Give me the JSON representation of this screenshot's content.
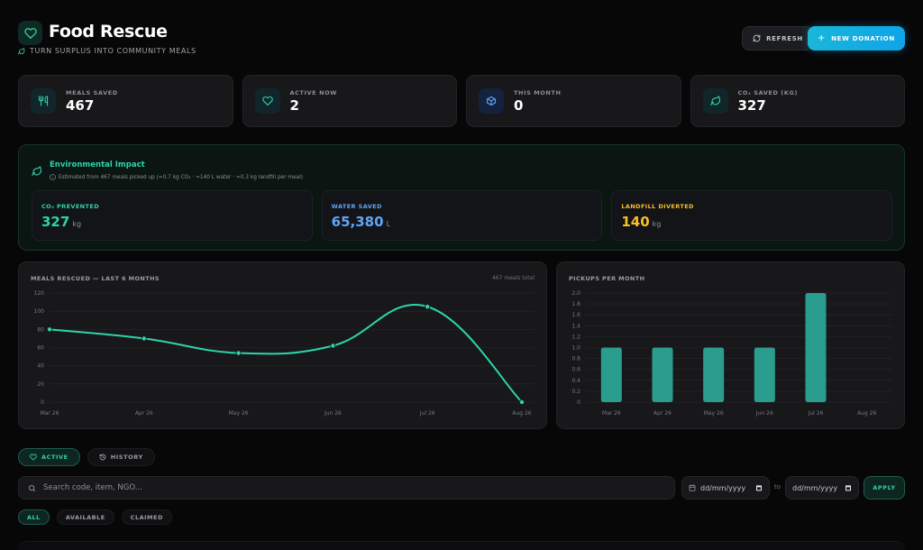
{
  "header": {
    "title": "Food Rescue",
    "subtitle": "TURN SURPLUS INTO COMMUNITY MEALS",
    "refresh_label": "REFRESH",
    "new_donation_label": "NEW DONATION"
  },
  "stats": [
    {
      "label": "MEALS SAVED",
      "value": "467",
      "icon": "utensils-icon"
    },
    {
      "label": "ACTIVE NOW",
      "value": "2",
      "icon": "heart-icon"
    },
    {
      "label": "THIS MONTH",
      "value": "0",
      "icon": "box-icon"
    },
    {
      "label": "CO₂ SAVED (KG)",
      "value": "327",
      "icon": "leaf-icon"
    }
  ],
  "impact": {
    "title": "Environmental Impact",
    "subtitle": "Estimated from 467 meals picked up (≈0.7 kg CO₂ · ≈140 L water · ≈0.3 kg landfill per meal)",
    "cards": [
      {
        "label": "CO₂ PREVENTED",
        "value": "327",
        "unit": "kg",
        "color": "#2dd4aa"
      },
      {
        "label": "WATER SAVED",
        "value": "65,380",
        "unit": "L",
        "color": "#60a5fa"
      },
      {
        "label": "LANDFILL DIVERTED",
        "value": "140",
        "unit": "kg",
        "color": "#fbbf24"
      }
    ]
  },
  "chart_data": [
    {
      "type": "line",
      "title": "MEALS RESCUED — LAST 6 MONTHS",
      "note": "467 meals total",
      "categories": [
        "Mar 26",
        "Apr 26",
        "May 26",
        "Jun 26",
        "Jul 26",
        "Aug 26"
      ],
      "values": [
        80,
        70,
        54,
        62,
        105,
        0
      ],
      "ylim": [
        0,
        120
      ],
      "yticks": [
        0,
        20,
        40,
        60,
        80,
        100,
        120
      ],
      "color": "#2dd4aa",
      "grid": true
    },
    {
      "type": "bar",
      "title": "PICKUPS PER MONTH",
      "categories": [
        "Mar 26",
        "Apr 26",
        "May 26",
        "Jun 26",
        "Jul 26",
        "Aug 26"
      ],
      "values": [
        1,
        1,
        1,
        1,
        2,
        0
      ],
      "ylim": [
        0,
        2
      ],
      "yticks": [
        "0",
        "0.2",
        "0.4",
        "0.6",
        "0.8",
        "1.0",
        "1.2",
        "1.4",
        "1.6",
        "1.8",
        "2.0"
      ],
      "color": "#2a9d8f",
      "grid": true
    }
  ],
  "tabs": [
    {
      "label": "ACTIVE",
      "active": true
    },
    {
      "label": "HISTORY",
      "active": false
    }
  ],
  "search": {
    "placeholder": "Search code, item, NGO..."
  },
  "date_from": {
    "value": "dd/mm/yyyy"
  },
  "date_to": {
    "value": "dd/mm/yyyy"
  },
  "to_label": "to",
  "apply_label": "APPLY",
  "filters": [
    {
      "label": "ALL",
      "active": true
    },
    {
      "label": "AVAILABLE",
      "active": false
    },
    {
      "label": "CLAIMED",
      "active": false
    }
  ],
  "colors": {
    "accent": "#2dd4aa",
    "brand": "#0ea5e9",
    "background": "#070708"
  }
}
